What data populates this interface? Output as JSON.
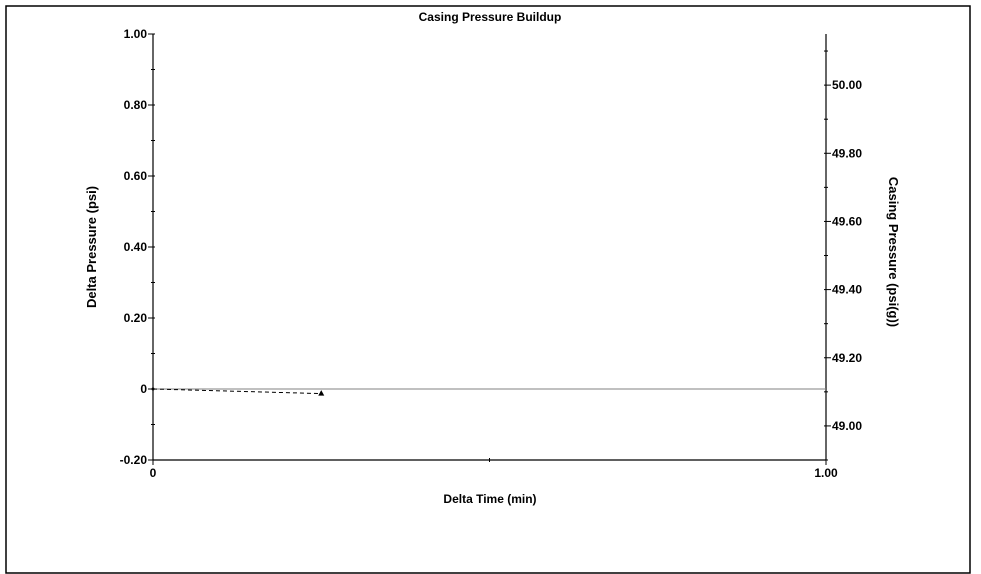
{
  "chart_data": {
    "type": "line",
    "title": "Casing Pressure Buildup",
    "xlabel": "Delta Time (min)",
    "ylabel": "Delta Pressure (psi)",
    "y2label": "Casing Pressure (psi(g))",
    "xlim": [
      0,
      1.0
    ],
    "ylim": [
      -0.2,
      1.0
    ],
    "y2lim": [
      48.9,
      50.15
    ],
    "x_ticks": [
      {
        "value": 0,
        "label": "0"
      },
      {
        "value": 1.0,
        "label": "1.00"
      }
    ],
    "x_minor_ticks": [
      0.5
    ],
    "y_ticks": [
      {
        "value": -0.2,
        "label": "-0.20"
      },
      {
        "value": 0,
        "label": "0"
      },
      {
        "value": 0.2,
        "label": "0.20"
      },
      {
        "value": 0.4,
        "label": "0.40"
      },
      {
        "value": 0.6,
        "label": "0.60"
      },
      {
        "value": 0.8,
        "label": "0.80"
      },
      {
        "value": 1.0,
        "label": "1.00"
      }
    ],
    "y_minor_ticks": [
      -0.1,
      0.1,
      0.3,
      0.5,
      0.7,
      0.9
    ],
    "y2_ticks": [
      {
        "value": 49.0,
        "label": "49.00"
      },
      {
        "value": 49.2,
        "label": "49.20"
      },
      {
        "value": 49.4,
        "label": "49.40"
      },
      {
        "value": 49.6,
        "label": "49.60"
      },
      {
        "value": 49.8,
        "label": "49.80"
      },
      {
        "value": 50.0,
        "label": "50.00"
      }
    ],
    "y2_minor_ticks": [
      48.9,
      49.1,
      49.3,
      49.5,
      49.7,
      49.9,
      50.1
    ],
    "reference_line": {
      "y": 0
    },
    "series": [
      {
        "x": [
          0,
          0.25
        ],
        "y": [
          0,
          -0.013
        ],
        "style": "dashed",
        "marker": "triangle",
        "color": "#000000"
      }
    ],
    "grid": false,
    "colors": {
      "axis": "#000000",
      "reference": "#808080",
      "series": "#000000"
    }
  }
}
